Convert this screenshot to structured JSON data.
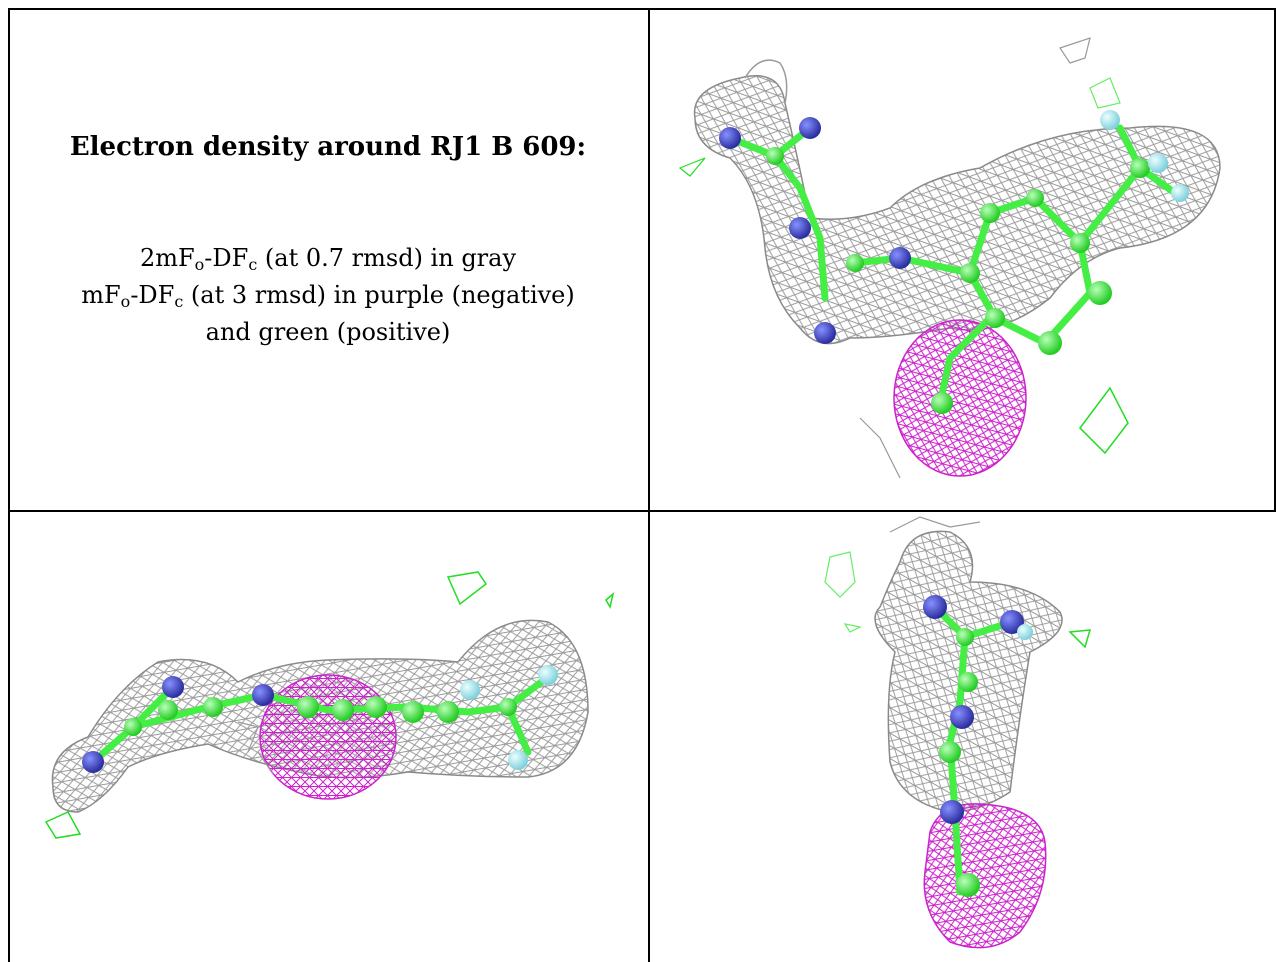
{
  "caption": {
    "heading": "Electron density around RJ1 B 609:",
    "line1": {
      "a": "2mF",
      "sub_o": "o",
      "b": "-DF",
      "sub_c": "c",
      "rest": " (at 0.7 rmsd) in gray"
    },
    "line2": {
      "a": "mF",
      "sub_o": "o",
      "b": "-DF",
      "sub_c": "c",
      "rest": " (at 3 rmsd) in purple (negative)"
    },
    "line3": "and green (positive)"
  },
  "colors": {
    "mesh_gray": "#9a9a9a",
    "mesh_purple": "#cc22cc",
    "mesh_green": "#22dd22",
    "atom_carbon": "#44ee44",
    "atom_nitrogen": "#3a3ec8",
    "atom_fluorine": "#9ee6ee"
  },
  "views": [
    "view-top-right",
    "view-bottom-left",
    "view-bottom-right"
  ]
}
